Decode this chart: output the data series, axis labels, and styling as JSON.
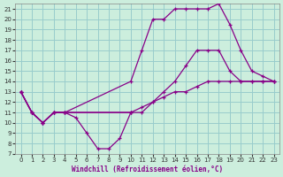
{
  "title": "",
  "xlabel": "Windchill (Refroidissement éolien,°C)",
  "background_color": "#cceedd",
  "line_color": "#880088",
  "grid_color": "#99cccc",
  "xlim": [
    -0.5,
    23.5
  ],
  "ylim": [
    7,
    21.5
  ],
  "xticks": [
    0,
    1,
    2,
    3,
    4,
    5,
    6,
    7,
    8,
    9,
    10,
    11,
    12,
    13,
    14,
    15,
    16,
    17,
    18,
    19,
    20,
    21,
    22,
    23
  ],
  "yticks": [
    7,
    8,
    9,
    10,
    11,
    12,
    13,
    14,
    15,
    16,
    17,
    18,
    19,
    20,
    21
  ],
  "series": [
    {
      "x": [
        0,
        1,
        2,
        3,
        4,
        5,
        6,
        7,
        8,
        9,
        10
      ],
      "y": [
        13,
        11,
        10,
        11,
        11,
        10.5,
        9,
        7.5,
        7.5,
        8.5,
        11
      ]
    },
    {
      "x": [
        0,
        1,
        2,
        3,
        4,
        10,
        11,
        12,
        13,
        14,
        15,
        16,
        17,
        18,
        19,
        20,
        21,
        22,
        23
      ],
      "y": [
        13,
        11,
        10,
        11,
        11,
        11,
        11,
        12,
        13,
        14,
        15.5,
        17,
        17,
        17,
        15,
        14,
        14,
        14,
        14
      ]
    },
    {
      "x": [
        0,
        1,
        2,
        3,
        4,
        10,
        11,
        12,
        13,
        14,
        15,
        16,
        17,
        18,
        19,
        20,
        21,
        22,
        23
      ],
      "y": [
        13,
        11,
        10,
        11,
        11,
        14,
        17,
        20,
        20,
        21,
        21,
        21,
        21,
        21.5,
        19.5,
        17,
        15,
        14.5,
        14
      ]
    },
    {
      "x": [
        0,
        1,
        2,
        3,
        4,
        10,
        11,
        12,
        13,
        14,
        15,
        16,
        17,
        18,
        19,
        20,
        21,
        22,
        23
      ],
      "y": [
        13,
        11,
        10,
        11,
        11,
        11,
        11.5,
        12,
        12.5,
        13,
        13,
        13.5,
        14,
        14,
        14,
        14,
        14,
        14,
        14
      ]
    }
  ]
}
